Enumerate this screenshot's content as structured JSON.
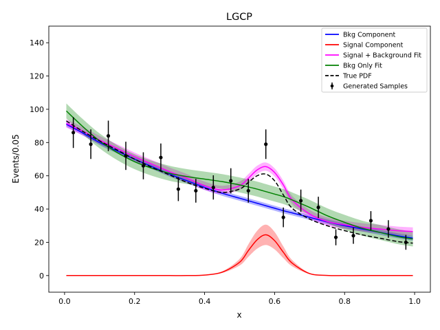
{
  "chart_data": {
    "type": "line",
    "title": "LGCP",
    "xlabel": "x",
    "ylabel": "Events/0.05",
    "xlim": [
      -0.045,
      1.045
    ],
    "ylim": [
      -10,
      150
    ],
    "x_ticks": [
      0.0,
      0.2,
      0.4,
      0.6,
      0.8,
      1.0
    ],
    "x_tick_labels": [
      "0.0",
      "0.2",
      "0.4",
      "0.6",
      "0.8",
      "1.0"
    ],
    "y_ticks": [
      0,
      20,
      40,
      60,
      80,
      100,
      120,
      140
    ],
    "y_tick_labels": [
      "0",
      "20",
      "40",
      "60",
      "80",
      "100",
      "120",
      "140"
    ],
    "grid": false,
    "legend_position": "top-right",
    "x": [
      0.005,
      0.05,
      0.1,
      0.15,
      0.2,
      0.25,
      0.3,
      0.35,
      0.4,
      0.45,
      0.5,
      0.525,
      0.55,
      0.575,
      0.6,
      0.625,
      0.65,
      0.7,
      0.75,
      0.8,
      0.85,
      0.9,
      0.95,
      0.995
    ],
    "series": [
      {
        "name": "Bkg Component",
        "color": "#0000ff",
        "style": "solid",
        "values": [
          91.0,
          86.0,
          80.0,
          75.0,
          70.0,
          65.5,
          61.0,
          57.0,
          53.0,
          49.5,
          46.5,
          45.0,
          43.5,
          42.0,
          40.5,
          39.0,
          37.7,
          35.0,
          32.3,
          30.0,
          28.0,
          26.0,
          24.0,
          22.5
        ],
        "band": 1.5
      },
      {
        "name": "Signal Component",
        "color": "#ff0000",
        "style": "solid",
        "values": [
          0.0,
          0.0,
          0.0,
          0.0,
          0.0,
          0.0,
          0.0,
          0.0,
          0.3,
          2.0,
          8.0,
          15.0,
          21.5,
          24.5,
          21.0,
          14.0,
          7.5,
          1.2,
          0.1,
          0.0,
          0.0,
          0.0,
          0.0,
          0.0
        ],
        "band_scale": 0.25
      },
      {
        "name": "Signal + Background Fit",
        "color": "#ff00ff",
        "style": "solid",
        "values": [
          91.5,
          87.0,
          81.5,
          76.5,
          71.5,
          67.0,
          62.5,
          58.5,
          54.0,
          51.5,
          54.0,
          58.5,
          63.5,
          65.5,
          62.0,
          54.5,
          45.5,
          37.0,
          32.5,
          30.5,
          29.0,
          28.0,
          27.0,
          26.5
        ],
        "band": 2.5
      },
      {
        "name": "Bkg Only Fit",
        "color": "#008000",
        "style": "solid",
        "values": [
          99.0,
          90.0,
          81.0,
          74.0,
          68.5,
          64.5,
          61.5,
          59.5,
          58.0,
          56.5,
          54.5,
          53.3,
          52.0,
          50.5,
          49.0,
          47.5,
          45.5,
          41.0,
          36.0,
          32.0,
          28.5,
          26.0,
          23.5,
          22.0
        ],
        "band": 4.5
      },
      {
        "name": "True PDF",
        "color": "#000000",
        "style": "dashed",
        "values": [
          93.0,
          87.0,
          81.0,
          75.5,
          70.0,
          65.0,
          60.5,
          56.0,
          52.5,
          50.0,
          52.0,
          56.0,
          60.0,
          61.0,
          57.0,
          48.5,
          40.5,
          34.0,
          30.0,
          27.0,
          24.5,
          22.5,
          20.5,
          19.5
        ]
      }
    ],
    "generated_samples": {
      "name": "Generated Samples",
      "x": [
        0.025,
        0.075,
        0.125,
        0.175,
        0.225,
        0.275,
        0.325,
        0.375,
        0.425,
        0.475,
        0.525,
        0.575,
        0.625,
        0.675,
        0.725,
        0.775,
        0.825,
        0.875,
        0.925,
        0.975
      ],
      "y": [
        86,
        79,
        84,
        72,
        66,
        71,
        52,
        51,
        53,
        57,
        51,
        79,
        35,
        45,
        41,
        23,
        24,
        33,
        28,
        20
      ]
    }
  }
}
